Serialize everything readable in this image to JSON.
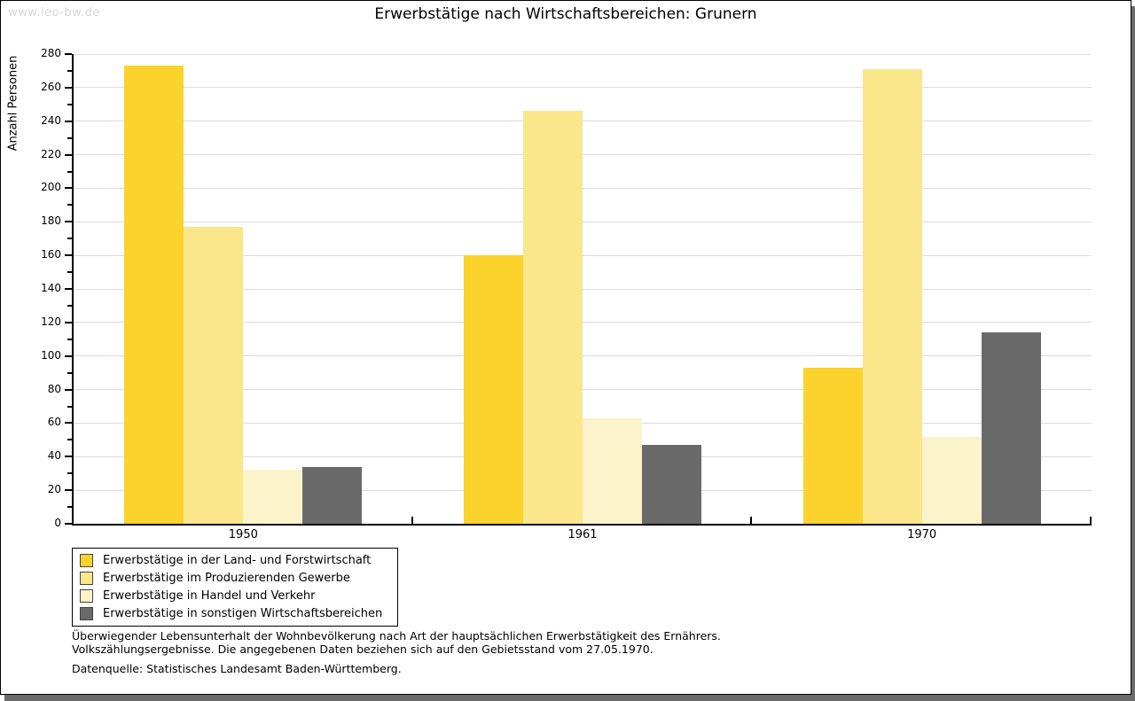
{
  "page": {
    "watermark": "www.leo-bw.de",
    "title": "Erwerbstätige nach Wirtschaftsbereichen: Grunern",
    "footnote_line1": "Überwiegender Lebensunterhalt der Wohnbevölkerung nach Art der hauptsächlichen Erwerbstätigkeit des Ernährers.",
    "footnote_line2": "Volkszählungsergebnisse. Die angegebenen Daten beziehen sich auf den Gebietsstand vom 27.05.1970.",
    "source": "Datenquelle: Statistisches Landesamt Baden-Württemberg."
  },
  "chart_data": {
    "type": "bar",
    "title": "Erwerbstätige nach Wirtschaftsbereichen: Grunern",
    "xlabel": "",
    "ylabel": "Anzahl Personen",
    "categories": [
      "1950",
      "1961",
      "1970"
    ],
    "series": [
      {
        "name": "Erwerbstätige in der Land- und Forstwirtschaft",
        "color": "#FBD32C",
        "values": [
          273,
          160,
          93
        ]
      },
      {
        "name": "Erwerbstätige im Produzierenden Gewerbe",
        "color": "#FAE78C",
        "values": [
          177,
          246,
          271
        ]
      },
      {
        "name": "Erwerbstätige in Handel und Verkehr",
        "color": "#FBF3C9",
        "values": [
          32,
          63,
          52
        ]
      },
      {
        "name": "Erwerbstätige in sonstigen Wirtschaftsbereichen",
        "color": "#6A6A6A",
        "values": [
          34,
          47,
          114
        ]
      }
    ],
    "ylim": [
      0,
      280
    ],
    "y_ticks": [
      0,
      20,
      40,
      60,
      80,
      100,
      120,
      140,
      160,
      180,
      200,
      220,
      240,
      260,
      280
    ],
    "y_minor_step": 10,
    "grid": true,
    "legend_position": "bottom-left",
    "colors": {
      "grid": "#DCDCDC",
      "axis": "#000000",
      "watermark": "#D8D8D8",
      "shadow": "#6B6B6B"
    }
  }
}
